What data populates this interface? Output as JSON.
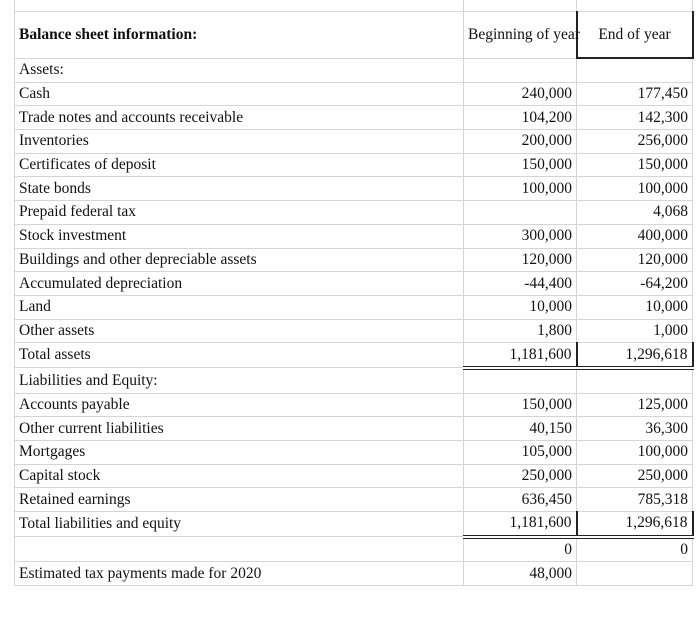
{
  "header": {
    "title": "Balance sheet information:",
    "col_begin": "Beginning of year",
    "col_end": "End of year"
  },
  "rows": [
    {
      "label": "Assets:",
      "begin": "",
      "end": ""
    },
    {
      "label": "Cash",
      "begin": "240,000",
      "end": "177,450"
    },
    {
      "label": "Trade notes and accounts receivable",
      "begin": "104,200",
      "end": "142,300"
    },
    {
      "label": "Inventories",
      "begin": "200,000",
      "end": "256,000"
    },
    {
      "label": "Certificates of deposit",
      "begin": "150,000",
      "end": "150,000"
    },
    {
      "label": "State bonds",
      "begin": "100,000",
      "end": "100,000"
    },
    {
      "label": "Prepaid federal tax",
      "begin": "",
      "end": "4,068"
    },
    {
      "label": "Stock investment",
      "begin": "300,000",
      "end": "400,000"
    },
    {
      "label": "Buildings and other depreciable assets",
      "begin": "120,000",
      "end": "120,000"
    },
    {
      "label": "Accumulated depreciation",
      "begin": "-44,400",
      "end": "-64,200"
    },
    {
      "label": "Land",
      "begin": "10,000",
      "end": "10,000"
    },
    {
      "label": "Other assets",
      "begin": "1,800",
      "end": "1,000"
    },
    {
      "label": "Total assets",
      "begin": "1,181,600",
      "end": "1,296,618",
      "total": true
    },
    {
      "label": "Liabilities and Equity:",
      "begin": "",
      "end": ""
    },
    {
      "label": "Accounts payable",
      "begin": "150,000",
      "end": "125,000"
    },
    {
      "label": "Other current liabilities",
      "begin": "40,150",
      "end": "36,300"
    },
    {
      "label": "Mortgages",
      "begin": "105,000",
      "end": "100,000"
    },
    {
      "label": "Capital stock",
      "begin": "250,000",
      "end": "250,000"
    },
    {
      "label": "Retained earnings",
      "begin": "636,450",
      "end": "785,318"
    },
    {
      "label": "Total liabilities and equity",
      "begin": "1,181,600",
      "end": "1,296,618",
      "total": true
    },
    {
      "label": "",
      "begin": "0",
      "end": "0"
    },
    {
      "label": "Estimated tax payments made for 2020",
      "begin": "48,000",
      "end": ""
    }
  ]
}
